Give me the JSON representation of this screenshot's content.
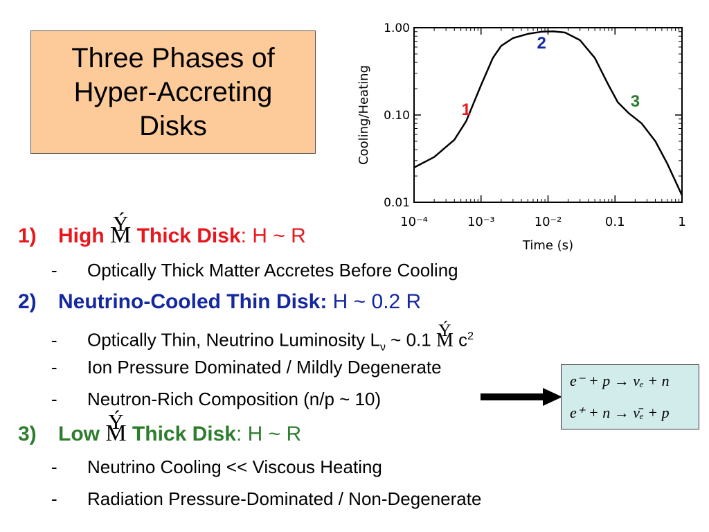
{
  "title": {
    "line1": "Three Phases of",
    "line2": "Hyper-Accreting",
    "line3": "Disks"
  },
  "chart_data": {
    "type": "line",
    "xscale": "log",
    "yscale": "log",
    "xlabel": "Time (s)",
    "ylabel": "Cooling/Heating",
    "xlim": [
      0.0001,
      1
    ],
    "ylim": [
      0.01,
      1
    ],
    "xticks": [
      "10⁻⁴",
      "10⁻³",
      "10⁻²",
      "0.1",
      "1"
    ],
    "yticks": [
      "1.00",
      "0.10",
      "0.01"
    ],
    "x": [
      0.0001,
      0.0002,
      0.0004,
      0.0006,
      0.001,
      0.0015,
      0.002,
      0.003,
      0.005,
      0.008,
      0.012,
      0.018,
      0.03,
      0.05,
      0.08,
      0.11,
      0.16,
      0.25,
      0.4,
      0.6,
      1.0
    ],
    "y": [
      0.025,
      0.033,
      0.052,
      0.085,
      0.22,
      0.45,
      0.62,
      0.76,
      0.85,
      0.9,
      0.91,
      0.88,
      0.72,
      0.45,
      0.22,
      0.14,
      0.105,
      0.08,
      0.05,
      0.028,
      0.012
    ],
    "annotations": [
      {
        "text": "1",
        "x": 0.0006,
        "y": 0.1,
        "color": "#e8161d"
      },
      {
        "text": "2",
        "x": 0.008,
        "y": 0.58,
        "color": "#1428a0"
      },
      {
        "text": "3",
        "x": 0.2,
        "y": 0.125,
        "color": "#2e7d2e"
      }
    ]
  },
  "items": [
    {
      "num": "1)",
      "pre": "High",
      "mdot": "M",
      "dot": "Ý",
      "name": "Thick Disk",
      "rest": ": H ~ R",
      "subs": [
        {
          "dash": "-",
          "text": "Optically Thick Matter Accretes Before Cooling"
        }
      ]
    },
    {
      "num": "2)",
      "name": "Neutrino-Cooled Thin Disk:",
      "rest": " H ~ 0.2 R",
      "subs": [
        {
          "dash": "-",
          "text": "Optically Thin, Neutrino Luminosity L",
          "lsub": "ν",
          "mid": " ~ 0.1 ",
          "mdot": "M",
          "dot": "Ý",
          "tail": " c",
          "sup": "2"
        },
        {
          "dash": "-",
          "text": "Ion Pressure Dominated / Mildly Degenerate"
        },
        {
          "dash": "-",
          "text": "Neutron-Rich Composition (n/p ~ 10)"
        }
      ]
    },
    {
      "num": "3)",
      "pre": "Low",
      "mdot": "M",
      "dot": "Ý",
      "name": "Thick Disk",
      "rest": ": H ~ R",
      "subs": [
        {
          "dash": "-",
          "text": "Neutrino Cooling << Viscous Heating"
        },
        {
          "dash": "-",
          "text": "Radiation Pressure-Dominated / Non-Degenerate"
        }
      ]
    }
  ],
  "equations": {
    "eq1": "e⁻ + p → νₑ + n",
    "eq2": "e⁺ + n → ν̄ₑ + p"
  }
}
